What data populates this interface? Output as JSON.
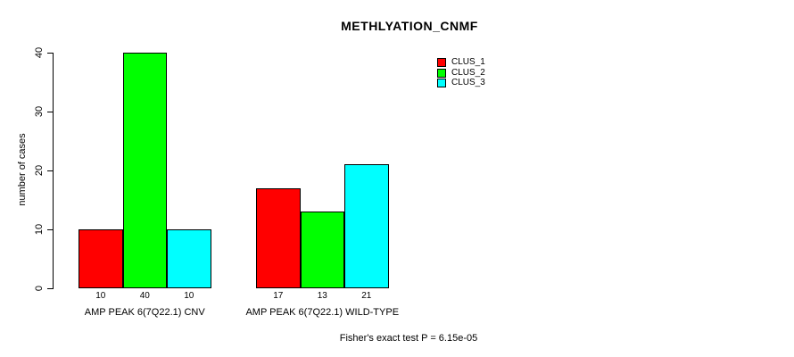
{
  "chart_data": {
    "type": "bar",
    "title": "METHLYATION_CNMF",
    "xlabel": "",
    "ylabel": "number of cases",
    "categories": [
      "AMP PEAK 6(7Q22.1) CNV",
      "AMP PEAK 6(7Q22.1) WILD-TYPE"
    ],
    "series": [
      {
        "name": "CLUS_1",
        "color": "#FF0000",
        "values": [
          10,
          17
        ]
      },
      {
        "name": "CLUS_2",
        "color": "#00FF00",
        "values": [
          40,
          13
        ]
      },
      {
        "name": "CLUS_3",
        "color": "#00FFFF",
        "values": [
          10,
          21
        ]
      }
    ],
    "bar_value_labels": [
      [
        "10",
        "40",
        "10"
      ],
      [
        "17",
        "13",
        "21"
      ]
    ],
    "yticks": [
      0,
      10,
      20,
      30,
      40
    ],
    "ylim": [
      0,
      40
    ],
    "grid": false,
    "legend_position": "top-right",
    "annotation": "Fisher's exact test P = 6.15e-05"
  }
}
